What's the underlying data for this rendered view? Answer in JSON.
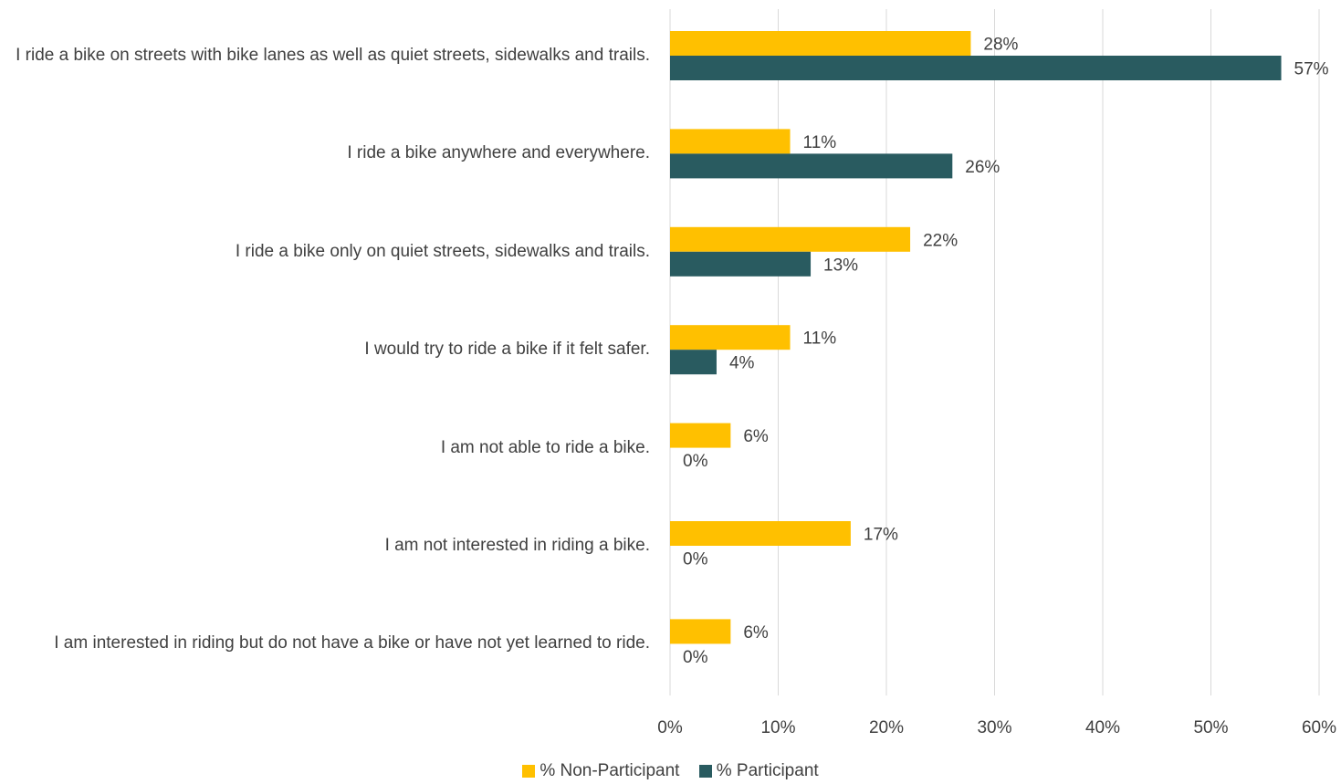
{
  "chart_data": {
    "type": "bar",
    "orientation": "horizontal",
    "categories": [
      "I ride a bike on streets with bike lanes as well as quiet streets, sidewalks and trails.",
      "I ride a bike anywhere and everywhere.",
      "I ride a bike only on quiet streets, sidewalks and trails.",
      "I would try to ride a bike if it felt safer.",
      "I am not able to ride a bike.",
      "I am not interested in riding a bike.",
      "I am interested in riding but do not have a bike or have not yet learned to ride."
    ],
    "series": [
      {
        "name": "% Non-Participant",
        "color": "#ffc000",
        "values": [
          27.8,
          11.1,
          22.2,
          11.1,
          5.6,
          16.7,
          5.6
        ],
        "labels": [
          "28%",
          "11%",
          "22%",
          "11%",
          "6%",
          "17%",
          "6%"
        ]
      },
      {
        "name": "% Participant",
        "color": "#295b60",
        "values": [
          56.5,
          26.1,
          13.0,
          4.3,
          0,
          0,
          0
        ],
        "labels": [
          "57%",
          "26%",
          "13%",
          "4%",
          "0%",
          "0%",
          "0%"
        ]
      }
    ],
    "xlim": [
      0,
      60
    ],
    "xticks": [
      "0%",
      "10%",
      "20%",
      "30%",
      "40%",
      "50%",
      "60%"
    ],
    "grid": true,
    "legend_position": "bottom"
  }
}
